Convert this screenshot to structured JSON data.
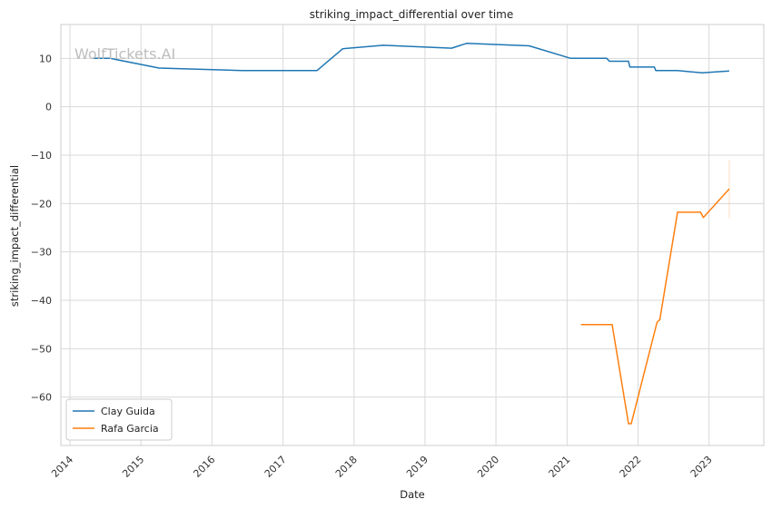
{
  "chart_data": {
    "type": "line",
    "title": "striking_impact_differential over time",
    "xlabel": "Date",
    "ylabel": "striking_impact_differential",
    "watermark": "WolfTickets.AI",
    "x_ticks": [
      "2014",
      "2015",
      "2016",
      "2017",
      "2018",
      "2019",
      "2020",
      "2021",
      "2022",
      "2023"
    ],
    "y_ticks": [
      10,
      0,
      -10,
      -20,
      -30,
      -40,
      -50,
      -60
    ],
    "xlim": [
      "2013-11-15",
      "2023-10-10"
    ],
    "ylim": [
      -70,
      17
    ],
    "grid": true,
    "legend_position": "lower-left",
    "series": [
      {
        "name": "Clay Guida",
        "color": "#1f77b4",
        "points": [
          [
            "2014-04-26",
            10.0
          ],
          [
            "2014-07-26",
            10.0
          ],
          [
            "2015-04-04",
            8.0
          ],
          [
            "2016-06-04",
            7.5
          ],
          [
            "2017-06-25",
            7.5
          ],
          [
            "2017-11-04",
            12.0
          ],
          [
            "2018-06-01",
            12.7
          ],
          [
            "2019-05-18",
            12.1
          ],
          [
            "2019-08-03",
            13.1
          ],
          [
            "2020-06-20",
            12.6
          ],
          [
            "2021-01-20",
            10.0
          ],
          [
            "2021-07-24",
            10.0
          ],
          [
            "2021-08-07",
            9.4
          ],
          [
            "2021-11-13",
            9.4
          ],
          [
            "2021-11-20",
            8.2
          ],
          [
            "2022-03-26",
            8.2
          ],
          [
            "2022-04-02",
            7.5
          ],
          [
            "2022-07-23",
            7.5
          ],
          [
            "2022-11-26",
            7.0
          ],
          [
            "2023-04-15",
            7.4
          ]
        ]
      },
      {
        "name": "Rafa Garcia",
        "color": "#ff7f0e",
        "points": [
          [
            "2021-03-13",
            -45.0
          ],
          [
            "2021-08-21",
            -45.0
          ],
          [
            "2021-11-13",
            -65.5
          ],
          [
            "2021-11-27",
            -65.5
          ],
          [
            "2022-04-09",
            -44.5
          ],
          [
            "2022-04-23",
            -44.0
          ],
          [
            "2022-07-23",
            -21.8
          ],
          [
            "2022-11-19",
            -21.8
          ],
          [
            "2022-12-03",
            -22.9
          ],
          [
            "2023-04-15",
            -17.0
          ]
        ],
        "band": {
          "date": "2023-04-15",
          "low": -23,
          "high": -11
        }
      }
    ]
  }
}
